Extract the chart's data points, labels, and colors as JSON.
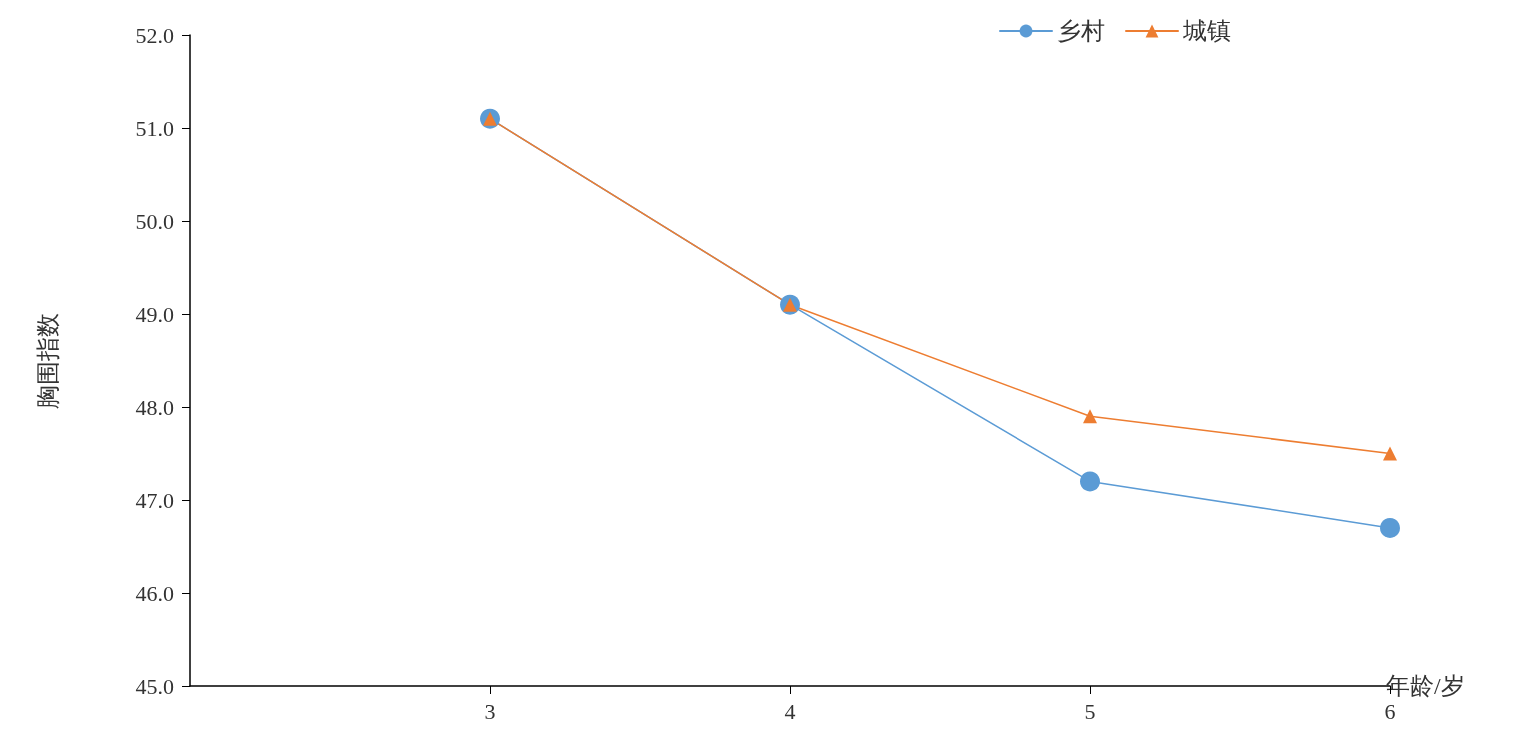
{
  "chart_data": {
    "type": "line",
    "xlabel": "年龄/岁",
    "ylabel": "胸围指数",
    "x": [
      3,
      4,
      5,
      6
    ],
    "series": [
      {
        "name": "乡村",
        "color": "#5b9bd5",
        "marker": "circle",
        "values": [
          51.1,
          49.1,
          47.2,
          46.7
        ]
      },
      {
        "name": "城镇",
        "color": "#ed7d31",
        "marker": "triangle",
        "values": [
          51.1,
          49.1,
          47.9,
          47.5
        ]
      }
    ],
    "xlim": [
      2,
      6
    ],
    "xticks": [
      3,
      4,
      5,
      6
    ],
    "ylim": [
      45,
      52
    ],
    "yticks": [
      {
        "value": 45,
        "label": "45.0"
      },
      {
        "value": 46,
        "label": "46.0"
      },
      {
        "value": 47,
        "label": "47.0"
      },
      {
        "value": 48,
        "label": "48.0"
      },
      {
        "value": 49,
        "label": "49.0"
      },
      {
        "value": 50,
        "label": "50.0"
      },
      {
        "value": 51,
        "label": "51.0"
      },
      {
        "value": 52,
        "label": "52.0"
      }
    ],
    "grid": false,
    "legend": "top right",
    "line_style": "solid"
  }
}
